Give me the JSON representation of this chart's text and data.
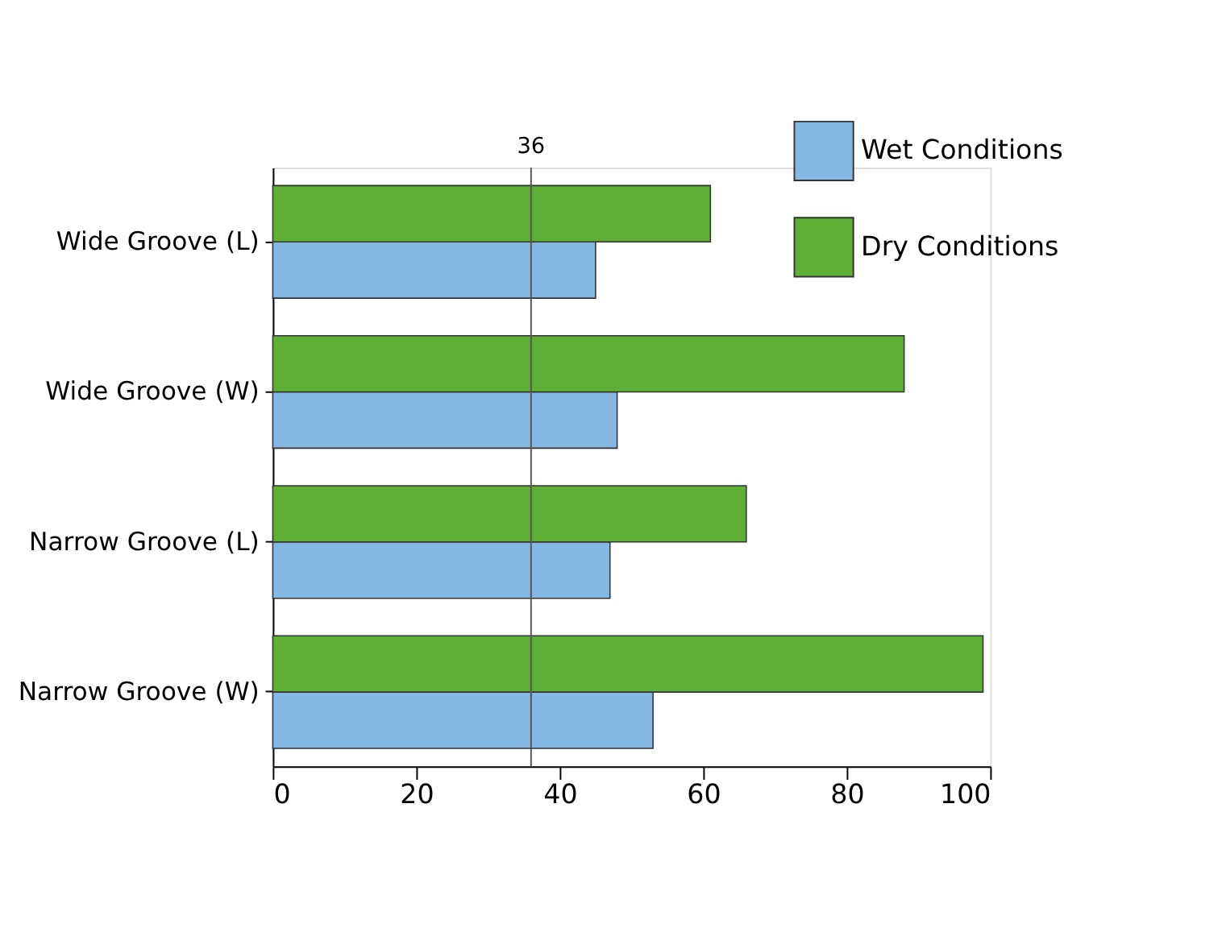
{
  "chart_data": {
    "type": "bar",
    "orientation": "horizontal",
    "categories": [
      "Wide Groove (L)",
      "Wide Groove (W)",
      "Narrow Groove (L)",
      "Narrow Groove (W)"
    ],
    "series": [
      {
        "name": "Wet Conditions",
        "color": "#85b7e3",
        "values": [
          45,
          48,
          47,
          53
        ]
      },
      {
        "name": "Dry Conditions",
        "color": "#5fae35",
        "values": [
          61,
          88,
          66,
          99
        ]
      }
    ],
    "xlim": [
      0,
      100
    ],
    "xticks": [
      0,
      20,
      40,
      60,
      80,
      100
    ],
    "ref_lines": [
      {
        "axis": "x",
        "value": 36,
        "label": "36"
      }
    ],
    "legend": "top right",
    "grid": false
  }
}
